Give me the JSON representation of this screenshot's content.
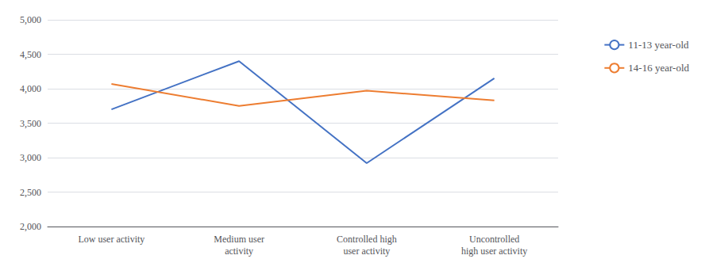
{
  "chart_data": {
    "type": "line",
    "categories": [
      "Low user activity",
      "Medium user\nactivity",
      "Controlled high\nuser activity",
      "Uncontrolled\nhigh user activity"
    ],
    "series": [
      {
        "name": "11-13 year-old",
        "color": "#4472C4",
        "values": [
          3700,
          4400,
          2920,
          4150
        ]
      },
      {
        "name": "14-16 year-old",
        "color": "#ED7D31",
        "values": [
          4070,
          3750,
          3970,
          3830
        ]
      }
    ],
    "ylim": [
      2000,
      5000
    ],
    "yticks": [
      {
        "value": 2000,
        "label": "2,000"
      },
      {
        "value": 2500,
        "label": "2,500"
      },
      {
        "value": 3000,
        "label": "3,000"
      },
      {
        "value": 3500,
        "label": "3,500"
      },
      {
        "value": 4000,
        "label": "4,000"
      },
      {
        "value": 4500,
        "label": "4,500"
      },
      {
        "value": 5000,
        "label": "5,000"
      }
    ],
    "grid": true,
    "legend": "right"
  }
}
